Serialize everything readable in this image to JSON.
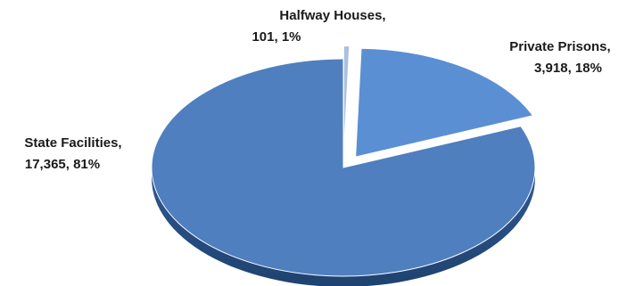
{
  "chart_data": {
    "type": "pie",
    "style": "3d-exploded",
    "title": "",
    "slices": [
      {
        "name": "State Facilities",
        "value": 17365,
        "percent": 81,
        "label_line1": "State Facilities,",
        "label_line2": "17,365, 81%",
        "color": "#4f7fbf",
        "exploded": false
      },
      {
        "name": "Halfway Houses",
        "value": 101,
        "percent": 1,
        "label_line1": "Halfway Houses,",
        "label_line2": "101, 1%",
        "color": "#a9c1de",
        "exploded": true
      },
      {
        "name": "Private Prisons",
        "value": 3918,
        "percent": 18,
        "label_line1": "Private Prisons,",
        "label_line2": "3,918, 18%",
        "color": "#5a8fd3",
        "exploded": true
      }
    ]
  }
}
